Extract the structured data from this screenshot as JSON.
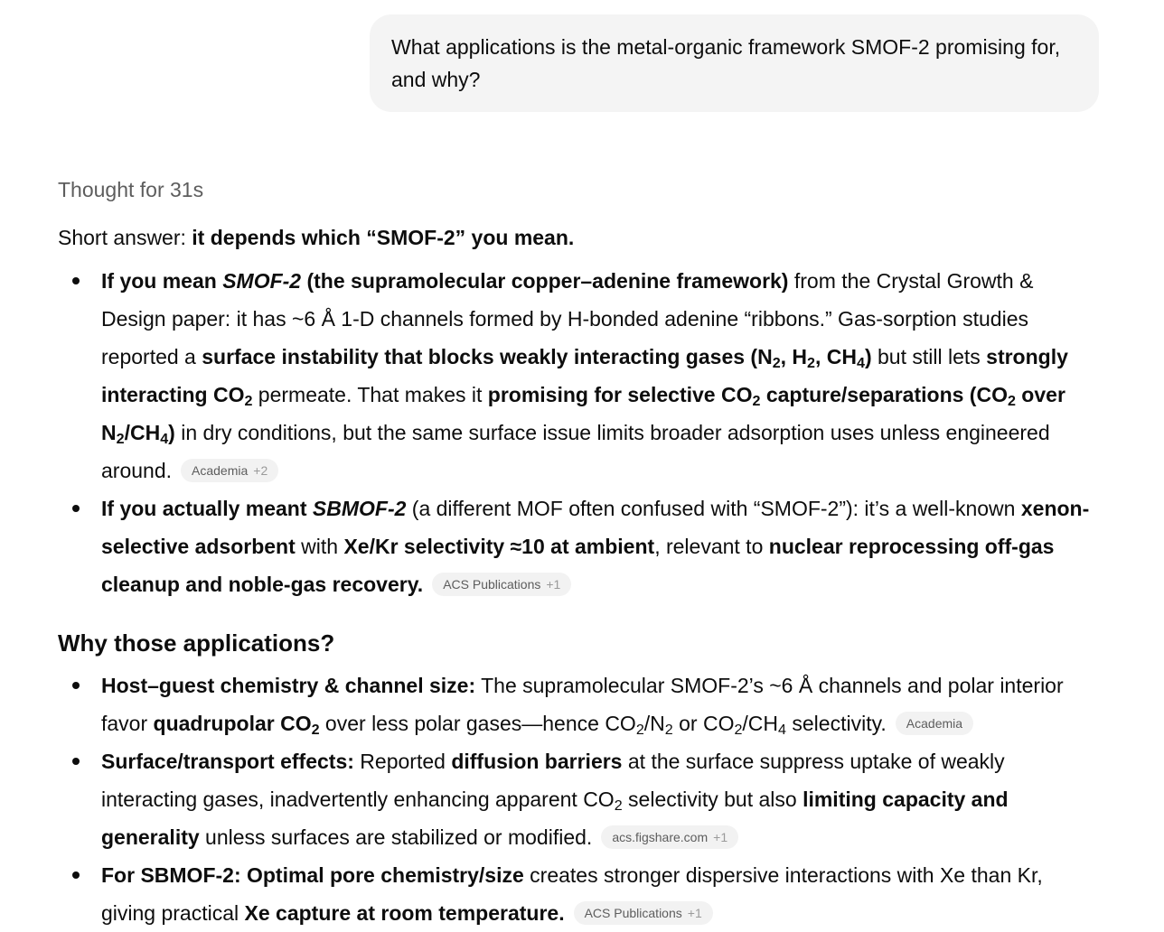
{
  "user_message": "What applications is the metal-organic framework SMOF-2 promising for, and why?",
  "thought_label": "Thought for 31s",
  "short_answer": {
    "prefix": "Short answer: ",
    "bold": "it depends which “SMOF-2” you mean."
  },
  "bullets_1": [
    {
      "t1": "If you mean ",
      "t2": "SMOF-2",
      "t3": " (the supramolecular copper–adenine framework)",
      "t4": " from the Crystal Growth & Design paper: it has ~6 Å 1-D channels formed by H-bonded adenine “ribbons.” Gas-sorption studies reported a ",
      "t5": "surface instability that blocks weakly interacting gases (N",
      "t5s": "2",
      "t6": ", H",
      "t6s": "2",
      "t7": ", CH",
      "t7s": "4",
      "t8": ")",
      "t9": " but still lets ",
      "t10": "strongly interacting CO",
      "t10s": "2",
      "t11": " permeate. That makes it ",
      "t12": "promising for selective CO",
      "t12s": "2",
      "t13": " capture/separations (CO",
      "t13s": "2",
      "t14": " over N",
      "t14s": "2",
      "t15": "/CH",
      "t15s": "4",
      "t16": ")",
      "t17": " in dry conditions, but the same surface issue limits broader adsorption uses unless engineered around.",
      "source": "Academia",
      "source_more": "+2"
    },
    {
      "t1": "If you actually meant ",
      "t2": "SBMOF-2",
      "t3": " (a different MOF often confused with “SMOF-2”): it’s a well-known ",
      "t4": "xenon-selective adsorbent",
      "t5": " with ",
      "t6": "Xe/Kr selectivity ≈10 at ambient",
      "t7": ", relevant to ",
      "t8": "nuclear reprocessing off-gas cleanup and noble-gas recovery.",
      "source": "ACS Publications",
      "source_more": "+1"
    }
  ],
  "section_heading": "Why those applications?",
  "bullets_2": [
    {
      "t1": "Host–guest chemistry & channel size:",
      "t2": " The supramolecular SMOF-2’s ~6 Å channels and polar interior favor ",
      "t3": "quadrupolar CO",
      "t3s": "2",
      "t4": " over less polar gases—hence CO",
      "t4s": "2",
      "t5": "/N",
      "t5s": "2",
      "t6": " or CO",
      "t6s": "2",
      "t7": "/CH",
      "t7s": "4",
      "t8": " selectivity.",
      "source": "Academia"
    },
    {
      "t1": "Surface/transport effects:",
      "t2": " Reported ",
      "t3": "diffusion barriers",
      "t4": " at the surface suppress uptake of weakly interacting gases, inadvertently enhancing apparent CO",
      "t4s": "2",
      "t5": " selectivity but also ",
      "t6": "limiting capacity and generality",
      "t7": " unless surfaces are stabilized or modified.",
      "source": "acs.figshare.com",
      "source_more": "+1"
    },
    {
      "t1": "For SBMOF-2: Optimal pore chemistry/size",
      "t2": " creates stronger dispersive interactions with Xe than Kr, giving practical ",
      "t3": "Xe capture at room temperature.",
      "source": "ACS Publications",
      "source_more": "+1"
    }
  ]
}
